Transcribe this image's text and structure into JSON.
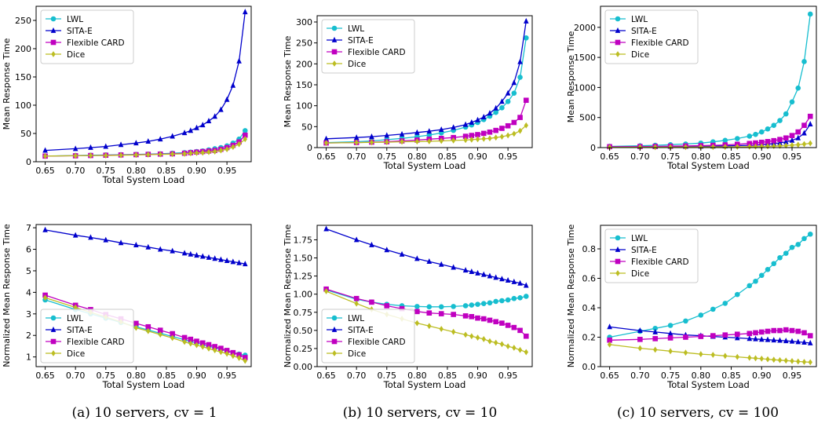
{
  "colors": {
    "LWL": "#17becf",
    "SITA-E": "#0000cc",
    "Flexible CARD": "#c000c0",
    "Dice": "#bcbd22"
  },
  "captions": [
    "(a) 10 servers, cv = 1",
    "(b) 10 servers, cv = 10",
    "(c) 10 servers, cv = 100"
  ],
  "chart_data": [
    {
      "type": "line",
      "panel": "a-top",
      "xlabel": "Total System Load",
      "ylabel": "Mean Response Time",
      "xlim": [
        0.635,
        0.99
      ],
      "ylim": [
        0,
        275
      ],
      "xticks": [
        "0.65",
        "0.70",
        "0.75",
        "0.80",
        "0.85",
        "0.90",
        "0.95"
      ],
      "yticks": [
        "0",
        "50",
        "100",
        "150",
        "200",
        "250"
      ],
      "x": [
        0.65,
        0.7,
        0.725,
        0.75,
        0.775,
        0.8,
        0.82,
        0.84,
        0.86,
        0.88,
        0.89,
        0.9,
        0.91,
        0.92,
        0.93,
        0.94,
        0.95,
        0.96,
        0.97,
        0.98
      ],
      "legend": [
        "LWL",
        "SITA-E",
        "Flexible CARD",
        "Dice"
      ],
      "legend_position": "top-left",
      "series": [
        {
          "name": "LWL",
          "values": [
            10,
            11,
            11.5,
            12,
            12.5,
            13,
            13.5,
            14,
            15,
            16,
            17,
            18,
            19,
            21,
            23,
            25,
            28,
            33,
            40,
            55
          ]
        },
        {
          "name": "SITA-E",
          "values": [
            20,
            23,
            25,
            27,
            30,
            33,
            36,
            40,
            45,
            51,
            55,
            60,
            65,
            72,
            80,
            92,
            110,
            135,
            178,
            265
          ]
        },
        {
          "name": "Flexible CARD",
          "values": [
            10,
            10.5,
            11,
            11.5,
            12,
            12.5,
            13,
            13.5,
            14,
            15,
            16,
            17,
            18,
            19,
            20,
            22,
            25,
            29,
            35,
            47
          ]
        },
        {
          "name": "Dice",
          "values": [
            10,
            10.5,
            11,
            11,
            11.5,
            12,
            12.5,
            13,
            13.5,
            14,
            15,
            15.5,
            16,
            17,
            18,
            20,
            22,
            26,
            31,
            40
          ]
        }
      ]
    },
    {
      "type": "line",
      "panel": "b-top",
      "xlabel": "Total System Load",
      "ylabel": "Mean Response Time",
      "xlim": [
        0.635,
        0.99
      ],
      "ylim": [
        0,
        315
      ],
      "xticks": [
        "0.65",
        "0.70",
        "0.75",
        "0.80",
        "0.85",
        "0.90",
        "0.95"
      ],
      "yticks": [
        "0",
        "50",
        "100",
        "150",
        "200",
        "250",
        "300"
      ],
      "x": [
        0.65,
        0.7,
        0.725,
        0.75,
        0.775,
        0.8,
        0.82,
        0.84,
        0.86,
        0.88,
        0.89,
        0.9,
        0.91,
        0.92,
        0.93,
        0.94,
        0.95,
        0.96,
        0.97,
        0.98
      ],
      "legend": [
        "LWL",
        "SITA-E",
        "Flexible CARD",
        "Dice"
      ],
      "legend_position": "top-left",
      "series": [
        {
          "name": "LWL",
          "values": [
            12,
            14,
            16,
            19,
            22,
            26,
            30,
            35,
            41,
            49,
            54,
            60,
            67,
            75,
            84,
            95,
            110,
            130,
            168,
            262
          ]
        },
        {
          "name": "SITA-E",
          "values": [
            21,
            24,
            26,
            29,
            32,
            36,
            39,
            43,
            48,
            55,
            60,
            66,
            73,
            82,
            94,
            110,
            130,
            155,
            205,
            302
          ]
        },
        {
          "name": "Flexible CARD",
          "values": [
            11,
            12,
            13,
            14,
            16,
            18,
            20,
            22,
            24,
            27,
            29,
            31,
            34,
            37,
            41,
            46,
            52,
            60,
            72,
            113
          ]
        },
        {
          "name": "Dice",
          "values": [
            11,
            12,
            12.5,
            13,
            14,
            14.5,
            15,
            16,
            17,
            18,
            19,
            20,
            21,
            22,
            24,
            26,
            29,
            33,
            40,
            53
          ]
        }
      ]
    },
    {
      "type": "line",
      "panel": "c-top",
      "xlabel": "Total System Load",
      "ylabel": "Mean Response Time",
      "xlim": [
        0.635,
        0.99
      ],
      "ylim": [
        0,
        2350
      ],
      "xticks": [
        "0.65",
        "0.70",
        "0.75",
        "0.80",
        "0.85",
        "0.90",
        "0.95"
      ],
      "yticks": [
        "0",
        "500",
        "1000",
        "1500",
        "2000"
      ],
      "x": [
        0.65,
        0.7,
        0.725,
        0.75,
        0.775,
        0.8,
        0.82,
        0.84,
        0.86,
        0.88,
        0.89,
        0.9,
        0.91,
        0.92,
        0.93,
        0.94,
        0.95,
        0.96,
        0.97,
        0.98
      ],
      "legend": [
        "LWL",
        "SITA-E",
        "Flexible CARD",
        "Dice"
      ],
      "legend_position": "top-left",
      "series": [
        {
          "name": "LWL",
          "values": [
            20,
            30,
            38,
            48,
            60,
            75,
            95,
            120,
            150,
            190,
            220,
            260,
            310,
            370,
            450,
            560,
            760,
            990,
            1430,
            2220
          ]
        },
        {
          "name": "SITA-E",
          "values": [
            12,
            14,
            15,
            16,
            18,
            20,
            23,
            27,
            32,
            38,
            42,
            48,
            55,
            65,
            78,
            95,
            120,
            160,
            240,
            390
          ]
        },
        {
          "name": "Flexible CARD",
          "values": [
            15,
            18,
            20,
            23,
            27,
            32,
            38,
            45,
            55,
            68,
            77,
            88,
            100,
            115,
            135,
            160,
            200,
            260,
            370,
            520
          ]
        },
        {
          "name": "Dice",
          "values": [
            5,
            6,
            6.5,
            7,
            8,
            9,
            10,
            11,
            13,
            15,
            17,
            19,
            21,
            24,
            28,
            33,
            40,
            48,
            58,
            72
          ]
        }
      ]
    },
    {
      "type": "line",
      "panel": "a-bottom",
      "xlabel": "Total System Load",
      "ylabel": "Normalized Mean Response Time",
      "xlim": [
        0.635,
        0.99
      ],
      "ylim": [
        0.55,
        7.15
      ],
      "xticks": [
        "0.65",
        "0.70",
        "0.75",
        "0.80",
        "0.85",
        "0.90",
        "0.95"
      ],
      "yticks": [
        "1",
        "2",
        "3",
        "4",
        "5",
        "6",
        "7"
      ],
      "x": [
        0.65,
        0.7,
        0.725,
        0.75,
        0.775,
        0.8,
        0.82,
        0.84,
        0.86,
        0.88,
        0.89,
        0.9,
        0.91,
        0.92,
        0.93,
        0.94,
        0.95,
        0.96,
        0.97,
        0.98
      ],
      "legend": [
        "LWL",
        "SITA-E",
        "Flexible CARD",
        "Dice"
      ],
      "legend_position": "lower-left",
      "series": [
        {
          "name": "LWL",
          "values": [
            3.65,
            3.2,
            3.0,
            2.8,
            2.6,
            2.4,
            2.25,
            2.1,
            1.95,
            1.8,
            1.72,
            1.65,
            1.57,
            1.5,
            1.42,
            1.35,
            1.28,
            1.2,
            1.13,
            1.08
          ]
        },
        {
          "name": "SITA-E",
          "values": [
            6.9,
            6.65,
            6.55,
            6.43,
            6.3,
            6.2,
            6.1,
            6.0,
            5.92,
            5.82,
            5.77,
            5.72,
            5.67,
            5.62,
            5.57,
            5.52,
            5.47,
            5.42,
            5.37,
            5.32
          ]
        },
        {
          "name": "Flexible CARD",
          "values": [
            3.87,
            3.4,
            3.2,
            2.97,
            2.77,
            2.56,
            2.4,
            2.24,
            2.08,
            1.9,
            1.82,
            1.73,
            1.65,
            1.57,
            1.48,
            1.4,
            1.3,
            1.2,
            1.1,
            0.97
          ]
        },
        {
          "name": "Dice",
          "values": [
            3.75,
            3.3,
            3.07,
            2.85,
            2.63,
            2.35,
            2.2,
            2.04,
            1.88,
            1.7,
            1.62,
            1.55,
            1.47,
            1.39,
            1.31,
            1.23,
            1.15,
            1.05,
            0.95,
            0.82
          ]
        }
      ]
    },
    {
      "type": "line",
      "panel": "b-bottom",
      "xlabel": "Total System Load",
      "ylabel": "Normalized Mean Response Time",
      "xlim": [
        0.635,
        0.99
      ],
      "ylim": [
        0,
        1.95
      ],
      "xticks": [
        "0.65",
        "0.70",
        "0.75",
        "0.80",
        "0.85",
        "0.90",
        "0.95"
      ],
      "yticks": [
        "0.00",
        "0.25",
        "0.50",
        "0.75",
        "1.00",
        "1.25",
        "1.50",
        "1.75"
      ],
      "x": [
        0.65,
        0.7,
        0.725,
        0.75,
        0.775,
        0.8,
        0.82,
        0.84,
        0.86,
        0.88,
        0.89,
        0.9,
        0.91,
        0.92,
        0.93,
        0.94,
        0.95,
        0.96,
        0.97,
        0.98
      ],
      "legend": [
        "LWL",
        "SITA-E",
        "Flexible CARD",
        "Dice"
      ],
      "legend_position": "lower-left",
      "series": [
        {
          "name": "LWL",
          "values": [
            1.06,
            0.93,
            0.89,
            0.86,
            0.84,
            0.83,
            0.825,
            0.825,
            0.83,
            0.84,
            0.85,
            0.86,
            0.87,
            0.88,
            0.9,
            0.91,
            0.92,
            0.94,
            0.95,
            0.97
          ]
        },
        {
          "name": "SITA-E",
          "values": [
            1.9,
            1.75,
            1.68,
            1.61,
            1.55,
            1.49,
            1.45,
            1.41,
            1.37,
            1.33,
            1.31,
            1.29,
            1.27,
            1.25,
            1.23,
            1.21,
            1.19,
            1.17,
            1.15,
            1.12
          ]
        },
        {
          "name": "Flexible CARD",
          "values": [
            1.07,
            0.94,
            0.89,
            0.84,
            0.8,
            0.76,
            0.74,
            0.73,
            0.72,
            0.7,
            0.69,
            0.67,
            0.66,
            0.64,
            0.62,
            0.6,
            0.57,
            0.54,
            0.5,
            0.42
          ]
        },
        {
          "name": "Dice",
          "values": [
            1.04,
            0.87,
            0.79,
            0.72,
            0.66,
            0.6,
            0.56,
            0.52,
            0.48,
            0.44,
            0.42,
            0.4,
            0.38,
            0.35,
            0.33,
            0.31,
            0.28,
            0.26,
            0.23,
            0.2
          ]
        }
      ]
    },
    {
      "type": "line",
      "panel": "c-bottom",
      "xlabel": "Total System Load",
      "ylabel": "Normalized Mean Response Time",
      "xlim": [
        0.635,
        0.99
      ],
      "ylim": [
        0,
        0.96
      ],
      "xticks": [
        "0.65",
        "0.70",
        "0.75",
        "0.80",
        "0.85",
        "0.90",
        "0.95"
      ],
      "yticks": [
        "0.0",
        "0.2",
        "0.4",
        "0.6",
        "0.8"
      ],
      "x": [
        0.65,
        0.7,
        0.725,
        0.75,
        0.775,
        0.8,
        0.82,
        0.84,
        0.86,
        0.88,
        0.89,
        0.9,
        0.91,
        0.92,
        0.93,
        0.94,
        0.95,
        0.96,
        0.97,
        0.98
      ],
      "legend": [
        "LWL",
        "SITA-E",
        "Flexible CARD",
        "Dice"
      ],
      "legend_position": "top-left",
      "series": [
        {
          "name": "LWL",
          "values": [
            0.2,
            0.24,
            0.26,
            0.28,
            0.31,
            0.35,
            0.39,
            0.43,
            0.49,
            0.55,
            0.58,
            0.62,
            0.66,
            0.7,
            0.74,
            0.77,
            0.81,
            0.83,
            0.87,
            0.9
          ]
        },
        {
          "name": "SITA-E",
          "values": [
            0.27,
            0.245,
            0.235,
            0.225,
            0.215,
            0.21,
            0.205,
            0.2,
            0.195,
            0.19,
            0.188,
            0.185,
            0.183,
            0.18,
            0.178,
            0.175,
            0.172,
            0.168,
            0.165,
            0.16
          ]
        },
        {
          "name": "Flexible CARD",
          "values": [
            0.18,
            0.185,
            0.19,
            0.195,
            0.2,
            0.205,
            0.21,
            0.215,
            0.22,
            0.225,
            0.23,
            0.235,
            0.24,
            0.245,
            0.245,
            0.25,
            0.245,
            0.24,
            0.23,
            0.21
          ]
        },
        {
          "name": "Dice",
          "values": [
            0.15,
            0.125,
            0.115,
            0.105,
            0.095,
            0.085,
            0.08,
            0.073,
            0.066,
            0.06,
            0.057,
            0.054,
            0.05,
            0.047,
            0.044,
            0.041,
            0.038,
            0.035,
            0.032,
            0.03
          ]
        }
      ]
    }
  ]
}
